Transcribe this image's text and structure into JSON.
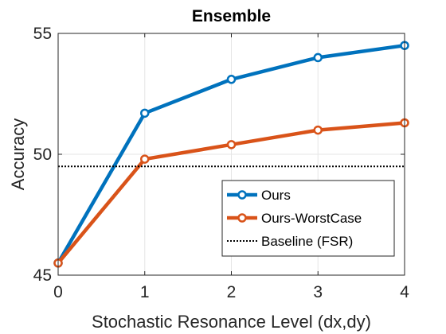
{
  "chart_data": {
    "type": "line",
    "title": "Ensemble",
    "xlabel": "Stochastic Resonance Level (dx,dy)",
    "ylabel": "Accuracy",
    "x": [
      0,
      1,
      2,
      3,
      4
    ],
    "xlim": [
      0,
      4
    ],
    "ylim": [
      45,
      55
    ],
    "xticks": [
      "0",
      "1",
      "2",
      "3",
      "4"
    ],
    "yticks": [
      "45",
      "50",
      "55"
    ],
    "grid": true,
    "legend_position": "bottom-right",
    "series": [
      {
        "name": "Ours",
        "values": [
          45.5,
          51.7,
          53.1,
          54.0,
          54.5
        ],
        "color": "#0072BD",
        "style": "solid",
        "marker": "circle"
      },
      {
        "name": "Ours-WorstCase",
        "values": [
          45.5,
          49.8,
          50.4,
          51.0,
          51.3
        ],
        "color": "#D95319",
        "style": "solid",
        "marker": "circle"
      },
      {
        "name": "Baseline (FSR)",
        "values": [
          49.5,
          49.5,
          49.5,
          49.5,
          49.5
        ],
        "color": "#000000",
        "style": "dotted",
        "marker": "none"
      }
    ]
  }
}
